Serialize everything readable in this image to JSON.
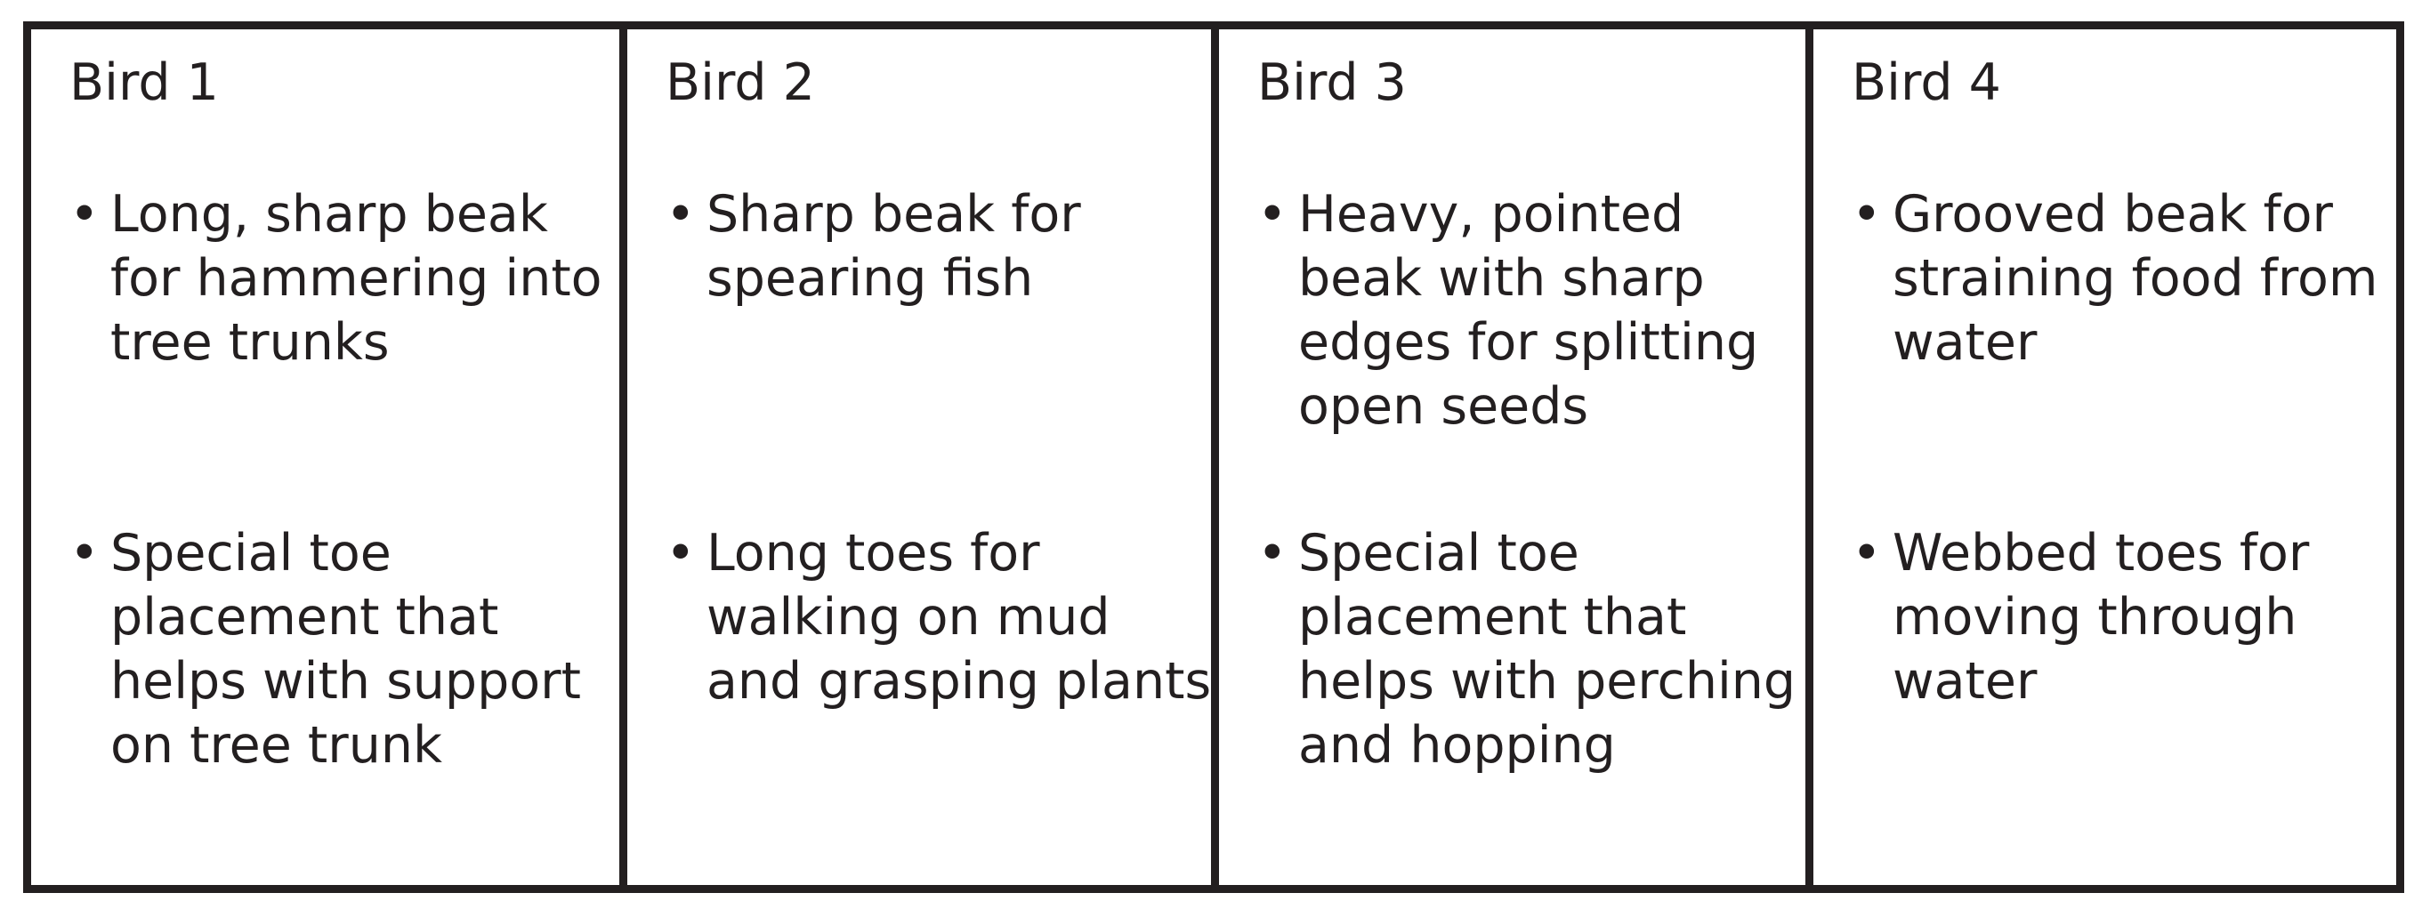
{
  "birds": [
    {
      "heading": "Bird 1",
      "beak": "Long, sharp beak for hammering into tree trunks",
      "toes": "Special toe placement that helps with support on tree trunk"
    },
    {
      "heading": "Bird 2",
      "beak": "Sharp beak for spearing fish",
      "toes": "Long toes for walking on mud and grasping plants"
    },
    {
      "heading": "Bird 3",
      "beak": "Heavy, pointed beak with sharp edges for splitting open seeds",
      "toes": "Special toe placement that helps with perching and hopping"
    },
    {
      "heading": "Bird 4",
      "beak": "Grooved beak for straining food from water",
      "toes": "Webbed toes for moving through water"
    }
  ],
  "bullet_glyph": "•",
  "colors": {
    "border": "#231f20",
    "text": "#231f20",
    "background": "#ffffff"
  }
}
